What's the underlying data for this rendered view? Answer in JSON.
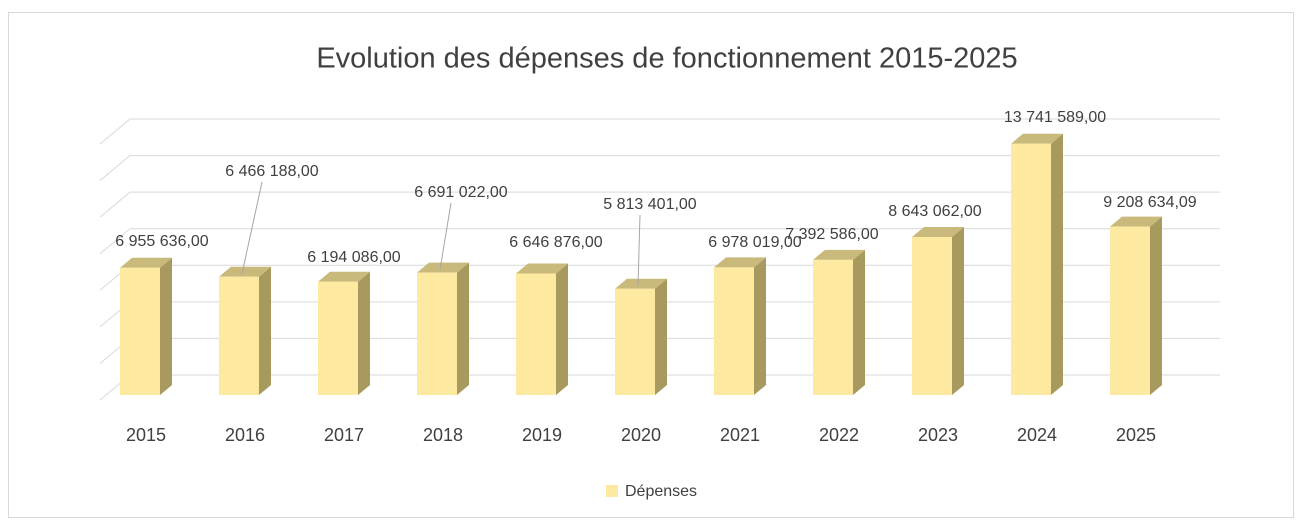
{
  "chart_data": {
    "type": "bar3d",
    "title": "Evolution des dépenses de fonctionnement 2015-2025",
    "categories": [
      "2015",
      "2016",
      "2017",
      "2018",
      "2019",
      "2020",
      "2021",
      "2022",
      "2023",
      "2024",
      "2025"
    ],
    "series": [
      {
        "name": "Dépenses",
        "color": "#fde9a0",
        "values": [
          6955636,
          6466188,
          6194086,
          6691022,
          6646876,
          5813401,
          6978019,
          7392586,
          8643062,
          13741589,
          9208634.09
        ],
        "value_labels": [
          "6 955 636,00",
          "6 466 188,00",
          "6 194 086,00",
          "6 691 022,00",
          "6 646 876,00",
          "5 813 401,00",
          "6 978 019,00",
          "7 392 586,00",
          "8 643 062,00",
          "13 741 589,00",
          "9 208 634,09"
        ]
      }
    ],
    "ylim": [
      0,
      14000000
    ],
    "yticks": [
      0,
      2000000,
      4000000,
      6000000,
      8000000,
      10000000,
      12000000,
      14000000
    ],
    "grid": true,
    "legend": "bottom"
  }
}
